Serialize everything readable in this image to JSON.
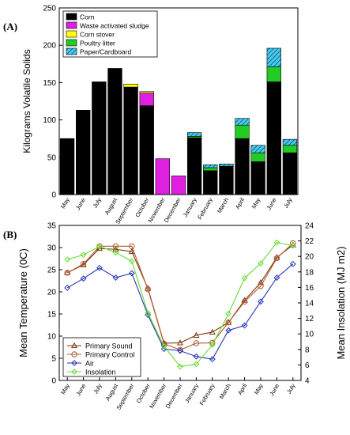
{
  "panel_labels": [
    "(A)",
    "(B)"
  ],
  "chart_data": [
    {
      "type": "bar",
      "stacked": true,
      "ylabel": "Kilograms Volatile Solids",
      "ylim": [
        0,
        250
      ],
      "yticks": [
        0,
        50,
        100,
        150,
        200,
        250
      ],
      "categories": [
        "May",
        "June",
        "July",
        "August",
        "September",
        "October",
        "November",
        "December",
        "January",
        "February",
        "March",
        "April",
        "May",
        "June",
        "July"
      ],
      "series": [
        {
          "name": "Corn",
          "color": "#000000",
          "pattern": "solid",
          "values": [
            75,
            113,
            151,
            169,
            144,
            119,
            0,
            0,
            76,
            32,
            38,
            75,
            44,
            151,
            56
          ]
        },
        {
          "name": "Waste activated sludge",
          "color": "#e020e0",
          "pattern": "solid",
          "values": [
            0,
            0,
            0,
            0,
            0,
            17,
            48,
            25,
            0,
            0,
            0,
            0,
            0,
            0,
            0
          ]
        },
        {
          "name": "Corn stover",
          "color": "#ffff00",
          "pattern": "solid",
          "values": [
            0,
            0,
            0,
            0,
            4,
            2,
            0,
            0,
            0,
            0,
            0,
            0,
            0,
            0,
            0
          ]
        },
        {
          "name": "Poultry litter",
          "color": "#22cc22",
          "pattern": "solid",
          "values": [
            0,
            0,
            0,
            0,
            0,
            0,
            0,
            0,
            2,
            4,
            0,
            18,
            12,
            20,
            10
          ]
        },
        {
          "name": "Paper/Cardboard",
          "color": "#44ccee",
          "pattern": "hatch",
          "values": [
            0,
            0,
            0,
            0,
            0,
            0,
            0,
            0,
            5,
            4,
            3,
            9,
            10,
            25,
            8
          ]
        }
      ],
      "legend": {
        "position": "top-left",
        "entries": [
          "Corn",
          "Waste activated sludge",
          "Corn stover",
          "Poultry litter",
          "Paper/Cardboard"
        ]
      }
    },
    {
      "type": "line",
      "ylabel": "Mean Temperature (0C)",
      "y2label": "Mean Insolation (MJ m2)",
      "ylim": [
        0,
        35
      ],
      "yticks": [
        0,
        5,
        10,
        15,
        20,
        25,
        30,
        35
      ],
      "y2lim": [
        4,
        24
      ],
      "y2ticks": [
        4,
        6,
        8,
        10,
        12,
        14,
        16,
        18,
        20,
        22,
        24
      ],
      "categories": [
        "May",
        "June",
        "July",
        "August",
        "September",
        "October",
        "November",
        "December",
        "January",
        "February",
        "March",
        "April",
        "May",
        "June",
        "July"
      ],
      "series": [
        {
          "name": "Primary Sound",
          "marker": "triangle",
          "color": "#7a3a12",
          "axis": "left",
          "values": [
            24.3,
            26.1,
            29.8,
            29.6,
            29.1,
            20.8,
            8.4,
            8.5,
            10.2,
            10.9,
            13.1,
            18.1,
            22.1,
            27.8,
            30.6
          ]
        },
        {
          "name": "Primary Control",
          "marker": "circle",
          "color": "#b05a30",
          "axis": "left",
          "values": [
            24.3,
            26.3,
            30.3,
            30.3,
            30.3,
            20.6,
            8.3,
            6.9,
            8.4,
            8.5,
            13.1,
            17.8,
            21.3,
            27.6,
            31.0
          ]
        },
        {
          "name": "Air",
          "marker": "diamond",
          "color": "#2233bb",
          "axis": "left",
          "values": [
            20.9,
            23.0,
            25.4,
            23.2,
            24.2,
            14.8,
            7.1,
            6.7,
            5.4,
            4.8,
            11.3,
            12.4,
            17.8,
            23.2,
            26.3
          ]
        },
        {
          "name": "Insolation",
          "marker": "diamond",
          "color": "#66dd33",
          "axis": "right",
          "values": [
            19.6,
            20.2,
            21.3,
            20.5,
            19.4,
            12.7,
            8.4,
            5.8,
            6.1,
            8.6,
            12.6,
            17.2,
            19.1,
            21.8,
            21.4
          ]
        }
      ],
      "legend": {
        "position": "bottom-left",
        "entries": [
          "Primary Sound",
          "Primary Control",
          "Air",
          "Insolation"
        ]
      }
    }
  ]
}
